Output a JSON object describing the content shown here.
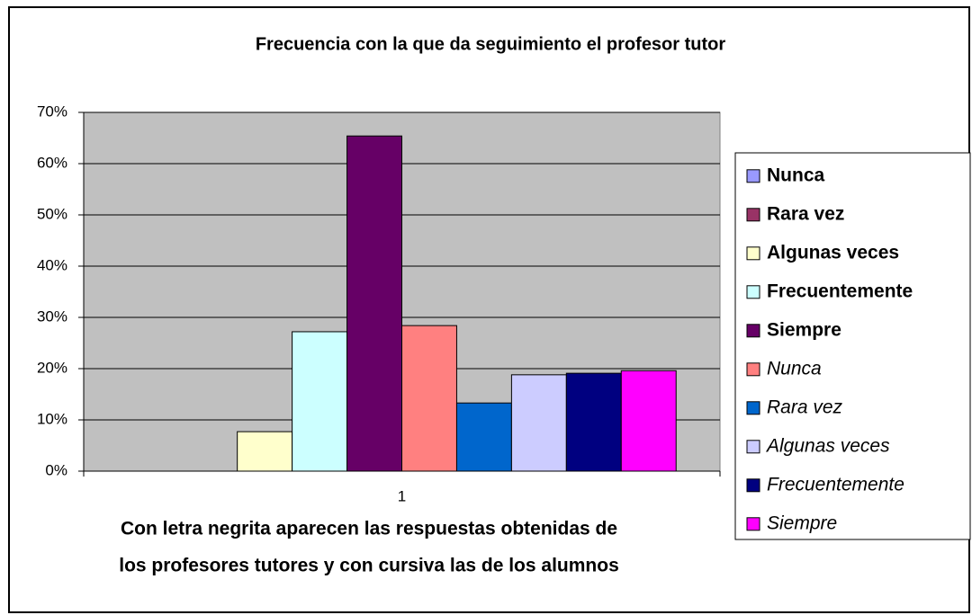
{
  "chart_data": {
    "type": "bar",
    "title": "Frecuencia con la que da seguimiento el profesor tutor",
    "categories": [
      "1"
    ],
    "series": [
      {
        "name": "Nunca",
        "color": "#9999ff",
        "style": "bold",
        "values": [
          0
        ]
      },
      {
        "name": "Rara vez",
        "color": "#993366",
        "style": "bold",
        "values": [
          0
        ]
      },
      {
        "name": "Algunas veces",
        "color": "#ffffcc",
        "style": "bold",
        "values": [
          7.7
        ]
      },
      {
        "name": "Frecuentemente",
        "color": "#ccffff",
        "style": "bold",
        "values": [
          27.2
        ]
      },
      {
        "name": "Siempre",
        "color": "#660066",
        "style": "bold",
        "values": [
          65.4
        ]
      },
      {
        "name": "Nunca",
        "color": "#ff8080",
        "style": "italic",
        "values": [
          28.4
        ]
      },
      {
        "name": "Rara vez",
        "color": "#0066cc",
        "style": "italic",
        "values": [
          13.3
        ]
      },
      {
        "name": "Algunas veces",
        "color": "#ccccff",
        "style": "italic",
        "values": [
          18.8
        ]
      },
      {
        "name": "Frecuentemente",
        "color": "#000080",
        "style": "italic",
        "values": [
          19.1
        ]
      },
      {
        "name": "Siempre",
        "color": "#ff00ff",
        "style": "italic",
        "values": [
          19.6
        ]
      }
    ],
    "ylim": [
      0,
      70
    ],
    "yticks": [
      {
        "value": 0,
        "label": "0%"
      },
      {
        "value": 10,
        "label": "10%"
      },
      {
        "value": 20,
        "label": "20%"
      },
      {
        "value": 30,
        "label": "30%"
      },
      {
        "value": 40,
        "label": "40%"
      },
      {
        "value": 50,
        "label": "50%"
      },
      {
        "value": 60,
        "label": "60%"
      },
      {
        "value": 70,
        "label": "70%"
      }
    ],
    "grid": true,
    "legend": "right",
    "note": [
      "Con letra negrita aparecen las respuestas obtenidas de",
      "los profesores tutores y con cursiva las de los alumnos"
    ]
  }
}
